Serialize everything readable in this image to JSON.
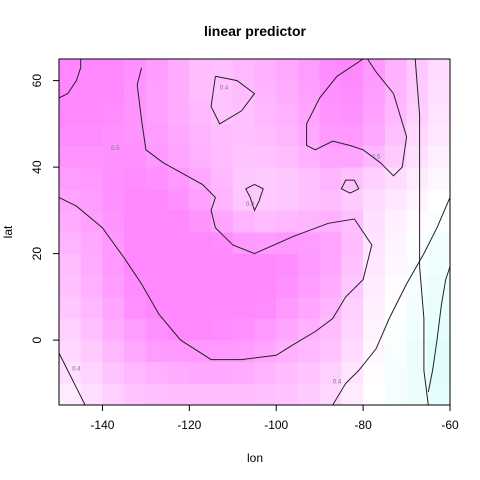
{
  "chart_data": {
    "type": "heatmap",
    "title": "linear predictor",
    "xlabel": "lon",
    "ylabel": "lat",
    "xlim": [
      -150,
      -60
    ],
    "ylim": [
      -15,
      65
    ],
    "xticks": [
      -140,
      -120,
      -100,
      -80,
      -60
    ],
    "yticks": [
      0,
      20,
      40,
      60
    ],
    "grid": false,
    "colors": {
      "low": "#dffcfc",
      "mid": "#ffffff",
      "high": "#ff88ff",
      "contour": "#222222",
      "contour_label": "#777777"
    },
    "x_cells": [
      -147.5,
      -142.5,
      -137.5,
      -132.5,
      -127.5,
      -122.5,
      -117.5,
      -112.5,
      -107.5,
      -102.5,
      -97.5,
      -92.5,
      -87.5,
      -82.5,
      -77.5,
      -72.5,
      -67.5,
      -62.5
    ],
    "y_cells": [
      -12.5,
      -7.5,
      -2.5,
      2.5,
      7.5,
      12.5,
      17.5,
      22.5,
      27.5,
      32.5,
      37.5,
      42.5,
      47.5,
      52.5,
      57.5,
      62.5
    ],
    "z": [
      [
        0.35,
        0.38,
        0.42,
        0.45,
        0.46,
        0.47,
        0.47,
        0.47,
        0.47,
        0.46,
        0.45,
        0.43,
        0.4,
        0.35,
        0.3,
        0.27,
        0.24,
        0.22
      ],
      [
        0.38,
        0.41,
        0.45,
        0.48,
        0.5,
        0.51,
        0.52,
        0.52,
        0.51,
        0.49,
        0.47,
        0.45,
        0.42,
        0.37,
        0.31,
        0.27,
        0.24,
        0.21
      ],
      [
        0.4,
        0.43,
        0.48,
        0.52,
        0.55,
        0.56,
        0.56,
        0.56,
        0.55,
        0.53,
        0.5,
        0.48,
        0.45,
        0.39,
        0.32,
        0.28,
        0.24,
        0.21
      ],
      [
        0.42,
        0.46,
        0.51,
        0.55,
        0.58,
        0.6,
        0.6,
        0.59,
        0.58,
        0.56,
        0.53,
        0.5,
        0.47,
        0.41,
        0.33,
        0.29,
        0.25,
        0.22
      ],
      [
        0.44,
        0.48,
        0.53,
        0.58,
        0.6,
        0.62,
        0.62,
        0.62,
        0.61,
        0.59,
        0.56,
        0.53,
        0.49,
        0.42,
        0.34,
        0.3,
        0.26,
        0.23
      ],
      [
        0.46,
        0.5,
        0.55,
        0.59,
        0.62,
        0.63,
        0.63,
        0.63,
        0.62,
        0.61,
        0.58,
        0.55,
        0.51,
        0.44,
        0.35,
        0.31,
        0.27,
        0.24
      ],
      [
        0.47,
        0.51,
        0.56,
        0.6,
        0.62,
        0.63,
        0.63,
        0.62,
        0.62,
        0.61,
        0.59,
        0.56,
        0.53,
        0.46,
        0.36,
        0.32,
        0.28,
        0.25
      ],
      [
        0.49,
        0.52,
        0.56,
        0.6,
        0.62,
        0.62,
        0.61,
        0.59,
        0.56,
        0.55,
        0.56,
        0.55,
        0.53,
        0.47,
        0.37,
        0.33,
        0.29,
        0.26
      ],
      [
        0.51,
        0.54,
        0.57,
        0.6,
        0.61,
        0.6,
        0.57,
        0.53,
        0.49,
        0.47,
        0.48,
        0.49,
        0.5,
        0.46,
        0.38,
        0.34,
        0.31,
        0.28
      ],
      [
        0.53,
        0.55,
        0.58,
        0.6,
        0.6,
        0.58,
        0.54,
        0.49,
        0.44,
        0.43,
        0.44,
        0.46,
        0.47,
        0.43,
        0.39,
        0.36,
        0.33,
        0.3
      ],
      [
        0.55,
        0.56,
        0.58,
        0.59,
        0.58,
        0.56,
        0.52,
        0.48,
        0.44,
        0.43,
        0.44,
        0.46,
        0.49,
        0.46,
        0.42,
        0.39,
        0.35,
        0.32
      ],
      [
        0.57,
        0.57,
        0.58,
        0.58,
        0.56,
        0.53,
        0.5,
        0.47,
        0.45,
        0.45,
        0.47,
        0.5,
        0.53,
        0.53,
        0.48,
        0.43,
        0.38,
        0.34
      ],
      [
        0.59,
        0.59,
        0.58,
        0.57,
        0.55,
        0.52,
        0.49,
        0.47,
        0.46,
        0.47,
        0.49,
        0.52,
        0.56,
        0.56,
        0.52,
        0.46,
        0.4,
        0.36
      ],
      [
        0.61,
        0.6,
        0.59,
        0.57,
        0.54,
        0.51,
        0.48,
        0.45,
        0.46,
        0.48,
        0.5,
        0.53,
        0.57,
        0.58,
        0.54,
        0.48,
        0.42,
        0.37
      ],
      [
        0.63,
        0.62,
        0.6,
        0.57,
        0.54,
        0.51,
        0.47,
        0.45,
        0.47,
        0.49,
        0.51,
        0.54,
        0.58,
        0.59,
        0.55,
        0.49,
        0.43,
        0.38
      ],
      [
        0.65,
        0.63,
        0.61,
        0.58,
        0.55,
        0.51,
        0.47,
        0.46,
        0.48,
        0.5,
        0.52,
        0.55,
        0.59,
        0.6,
        0.56,
        0.5,
        0.44,
        0.39
      ]
    ],
    "contours": [
      {
        "label": "0.5",
        "label_at": [
          -137,
          44
        ],
        "points": [
          [
            -150,
            33
          ],
          [
            -146,
            31
          ],
          [
            -140,
            26
          ],
          [
            -135,
            19
          ],
          [
            -131,
            13
          ],
          [
            -127,
            6
          ],
          [
            -122,
            0
          ],
          [
            -115,
            -4.5
          ],
          [
            -108,
            -4.5
          ],
          [
            -100,
            -3.5
          ],
          [
            -96,
            -1
          ],
          [
            -91,
            2
          ],
          [
            -87,
            5
          ],
          [
            -84,
            10
          ],
          [
            -80,
            14
          ],
          [
            -78,
            22
          ],
          [
            -82,
            28
          ],
          [
            -88,
            27
          ],
          [
            -96,
            24
          ],
          [
            -105,
            20
          ],
          [
            -110,
            22
          ],
          [
            -114,
            26
          ],
          [
            -115,
            30
          ],
          [
            -114,
            33
          ],
          [
            -117,
            36
          ],
          [
            -126,
            41
          ],
          [
            -130,
            44
          ],
          [
            -131,
            51
          ],
          [
            -132,
            59
          ],
          [
            -131,
            63
          ]
        ]
      },
      {
        "label": "0.4",
        "label_at": [
          -106,
          31
        ],
        "points": [
          [
            -105,
            36
          ],
          [
            -103,
            35
          ],
          [
            -104,
            32
          ],
          [
            -105,
            30
          ],
          [
            -106,
            33
          ],
          [
            -107,
            35
          ],
          [
            -105,
            36
          ]
        ]
      },
      {
        "label": "0.4",
        "label_at": [
          -112,
          58
        ],
        "points": [
          [
            -114,
            61
          ],
          [
            -109,
            60
          ],
          [
            -105,
            57
          ],
          [
            -108,
            53
          ],
          [
            -113,
            50
          ],
          [
            -115,
            54
          ],
          [
            -114,
            61
          ]
        ]
      },
      {
        "label": "0.5",
        "label_at": [
          -77,
          42
        ],
        "points": [
          [
            -80,
            65
          ],
          [
            -86,
            61
          ],
          [
            -90,
            56
          ],
          [
            -93,
            50
          ],
          [
            -93,
            45
          ],
          [
            -91,
            44
          ],
          [
            -87,
            46
          ],
          [
            -83,
            45
          ],
          [
            -80,
            44
          ],
          [
            -76,
            41
          ],
          [
            -73,
            38
          ],
          [
            -71,
            40
          ],
          [
            -70,
            47
          ],
          [
            -73,
            57
          ],
          [
            -77,
            62
          ],
          [
            -79,
            65
          ]
        ]
      },
      {
        "label": "",
        "label_at": null,
        "points": [
          [
            -82,
            37
          ],
          [
            -84,
            37
          ],
          [
            -85,
            35
          ],
          [
            -83,
            34
          ],
          [
            -81,
            35
          ],
          [
            -82,
            37
          ]
        ]
      },
      {
        "label": "0.4",
        "label_at": [
          -86,
          -10
        ],
        "points": [
          [
            -87,
            -15
          ],
          [
            -84,
            -10
          ],
          [
            -81,
            -7
          ],
          [
            -77,
            -2
          ],
          [
            -74,
            5
          ],
          [
            -70,
            13
          ],
          [
            -66,
            20
          ],
          [
            -63,
            26
          ],
          [
            -60,
            33
          ]
        ]
      },
      {
        "label": "",
        "label_at": null,
        "points": [
          [
            -68,
            65
          ],
          [
            -67,
            52
          ],
          [
            -67,
            35
          ],
          [
            -67,
            17
          ],
          [
            -66,
            5
          ],
          [
            -66,
            -7
          ],
          [
            -65,
            -15
          ]
        ]
      },
      {
        "label": "",
        "label_at": null,
        "points": [
          [
            -60,
            17
          ],
          [
            -61,
            14
          ],
          [
            -62,
            8
          ],
          [
            -63,
            0
          ],
          [
            -64,
            -7
          ],
          [
            -65,
            -12
          ]
        ]
      },
      {
        "label": "0.4",
        "label_at": [
          -146,
          -7
        ],
        "points": [
          [
            -150,
            -3
          ],
          [
            -148,
            -7
          ],
          [
            -146,
            -11
          ],
          [
            -144,
            -15
          ]
        ]
      },
      {
        "label": "",
        "label_at": null,
        "points": [
          [
            -150,
            56
          ],
          [
            -148,
            57
          ],
          [
            -146,
            60
          ],
          [
            -145,
            63
          ],
          [
            -145,
            65
          ]
        ]
      }
    ]
  }
}
